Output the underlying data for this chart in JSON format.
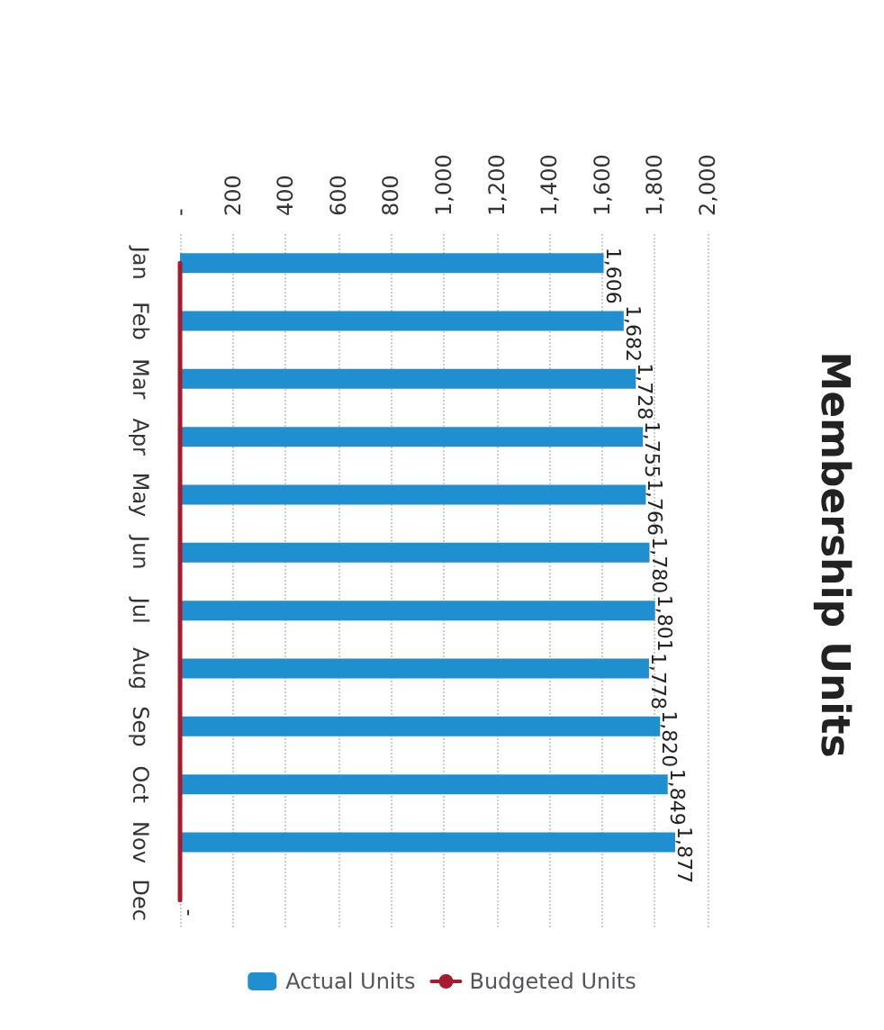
{
  "chart_data": {
    "type": "bar",
    "orientation": "horizontal",
    "title": "Membership Units",
    "categories": [
      "Jan",
      "Feb",
      "Mar",
      "Apr",
      "May",
      "Jun",
      "Jul",
      "Aug",
      "Sep",
      "Oct",
      "Nov",
      "Dec"
    ],
    "series": [
      {
        "name": "Actual Units",
        "color": "#1f8fd0",
        "values": [
          1606,
          1682,
          1728,
          1755,
          1766,
          1780,
          1801,
          1778,
          1820,
          1849,
          1877,
          0
        ],
        "value_labels": [
          "1,606",
          "1,682",
          "1,728",
          "1,755",
          "1,766",
          "1,780",
          "1,801",
          "1,778",
          "1,820",
          "1,849",
          "1,877",
          "-"
        ]
      },
      {
        "name": "Budgeted Units",
        "type": "line",
        "color": "#a51c30",
        "values": [
          0,
          0,
          0,
          0,
          0,
          0,
          0,
          0,
          0,
          0,
          0,
          0
        ]
      }
    ],
    "xlim": [
      0,
      2000
    ],
    "xticks": [
      {
        "value": 0,
        "label": "-"
      },
      {
        "value": 200,
        "label": "200"
      },
      {
        "value": 400,
        "label": "400"
      },
      {
        "value": 600,
        "label": "600"
      },
      {
        "value": 800,
        "label": "800"
      },
      {
        "value": 1000,
        "label": "1,000"
      },
      {
        "value": 1200,
        "label": "1,200"
      },
      {
        "value": 1400,
        "label": "1,400"
      },
      {
        "value": 1600,
        "label": "1,600"
      },
      {
        "value": 1800,
        "label": "1,800"
      },
      {
        "value": 2000,
        "label": "2,000"
      }
    ],
    "grid": "x",
    "legend": "bottom",
    "marker": "none",
    "line_style": "solid"
  }
}
